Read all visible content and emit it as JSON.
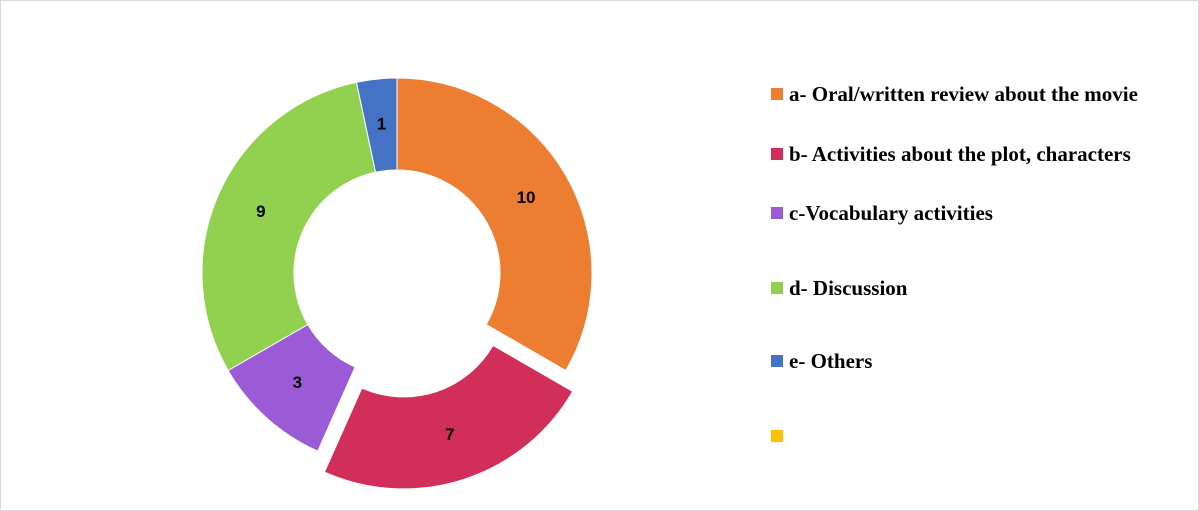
{
  "chart_data": {
    "type": "donut",
    "categories": [
      "a- Oral/written review about the movie",
      "b- Activities about the plot, characters",
      "c-Vocabulary activities",
      "d- Discussion",
      "e- Others",
      null
    ],
    "values": [
      10,
      7,
      3,
      9,
      1,
      null
    ],
    "colors": [
      "#ed7d31",
      "#d12e5a",
      "#9b5bd6",
      "#92d050",
      "#4472c4",
      "#ffc000"
    ],
    "legend": "right"
  }
}
